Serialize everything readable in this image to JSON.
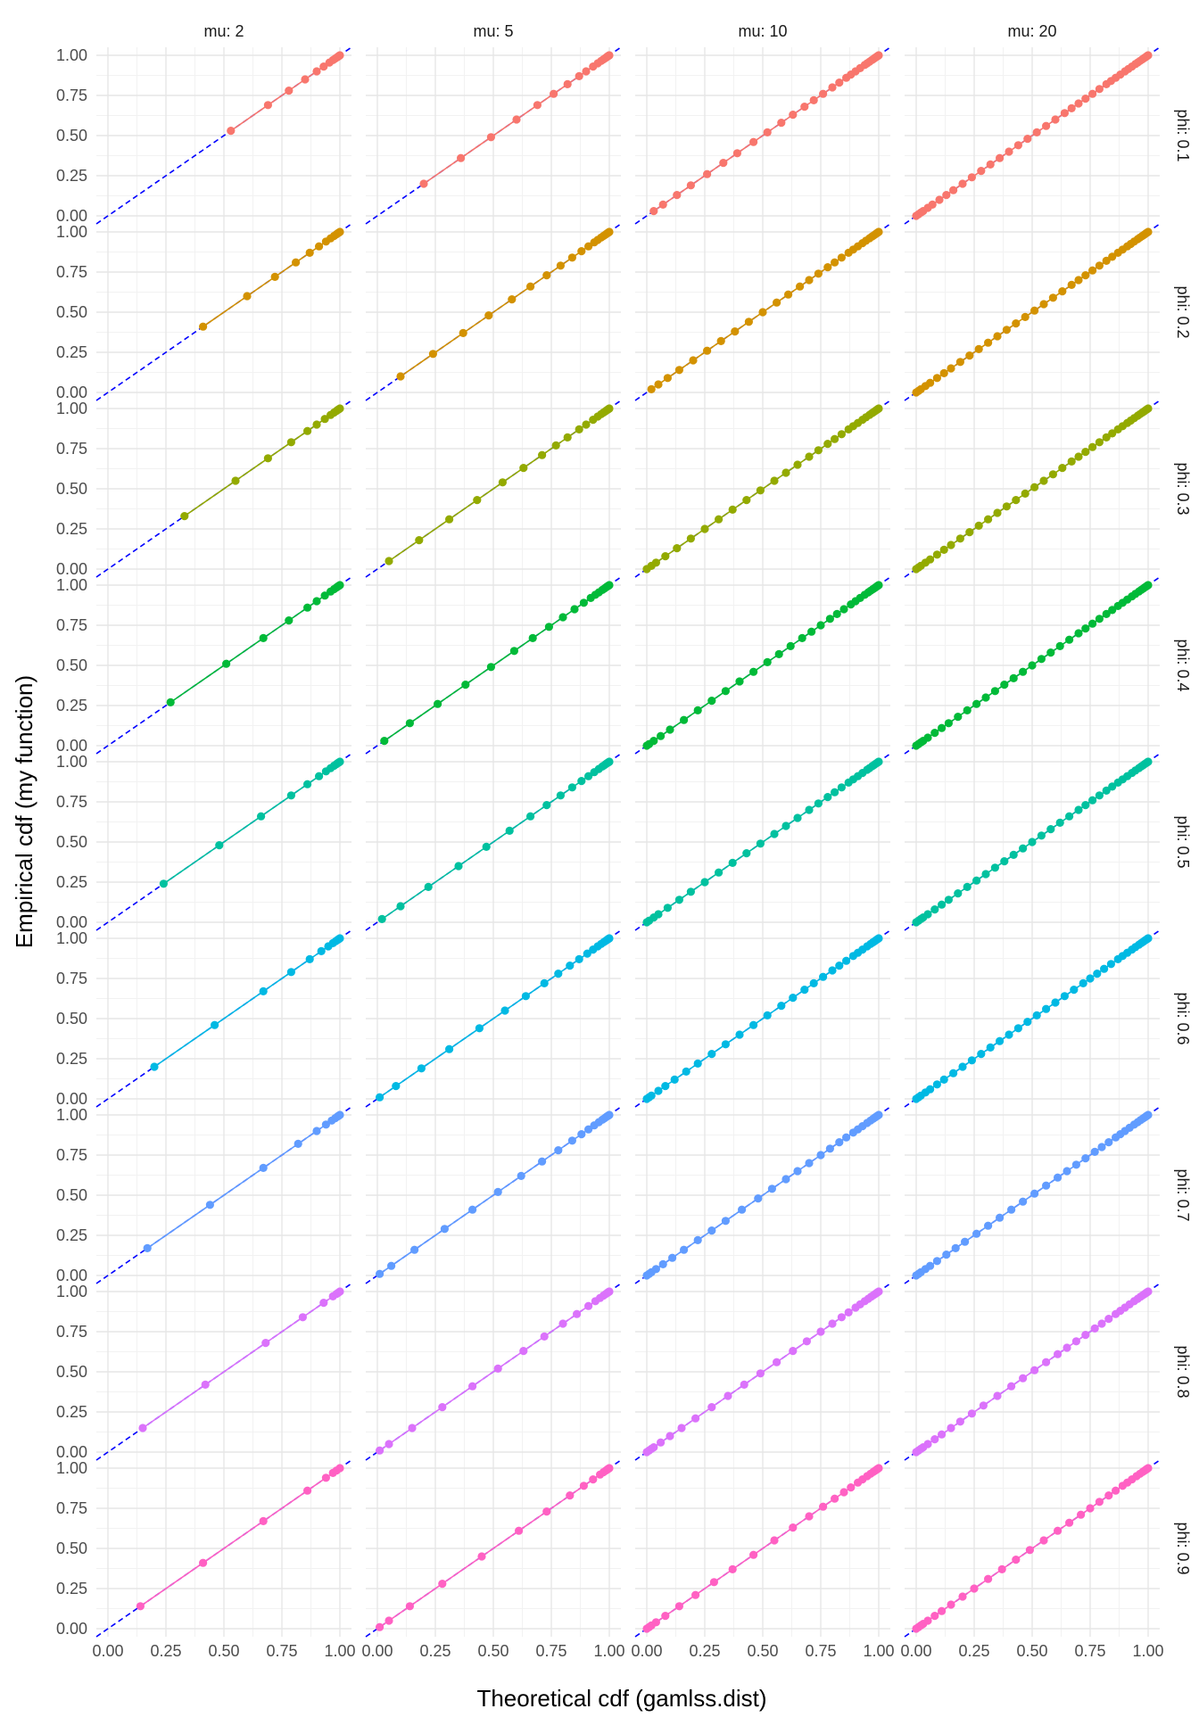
{
  "chart_data": {
    "type": "scatter",
    "xlabel": "Theoretical cdf (gamlss.dist)",
    "ylabel": "Empirical cdf (my function)",
    "xlim": [
      -0.05,
      1.05
    ],
    "ylim": [
      -0.05,
      1.05
    ],
    "x_ticks": [
      "0.00",
      "0.25",
      "0.50",
      "0.75",
      "1.00"
    ],
    "y_ticks": [
      "0.00",
      "0.25",
      "0.50",
      "0.75",
      "1.00"
    ],
    "grid": true,
    "reference_line": {
      "slope": 1,
      "intercept": 0,
      "style": "dashed",
      "color": "#0000ff"
    },
    "facet_cols": [
      "mu: 2",
      "mu: 5",
      "mu: 10",
      "mu: 20"
    ],
    "facet_rows": [
      "phi: 0.1",
      "phi: 0.2",
      "phi: 0.3",
      "phi: 0.4",
      "phi: 0.5",
      "phi: 0.6",
      "phi: 0.7",
      "phi: 0.8",
      "phi: 0.9"
    ],
    "row_colors": [
      "#F8766D",
      "#D39200",
      "#93AA00",
      "#00BA38",
      "#00C19F",
      "#00B9E3",
      "#619CFF",
      "#DB72FB",
      "#FF61C3"
    ],
    "mu_values": [
      2,
      5,
      10,
      20
    ],
    "phi_values": [
      0.1,
      0.2,
      0.3,
      0.4,
      0.5,
      0.6,
      0.7,
      0.8,
      0.9
    ],
    "panel_points": [
      [
        [
          0.53,
          0.69,
          0.78,
          0.85,
          0.9,
          0.93,
          0.955,
          0.97,
          0.98,
          0.988,
          0.993,
          0.996,
          0.998,
          1.0
        ],
        [
          0.2,
          0.36,
          0.49,
          0.6,
          0.69,
          0.76,
          0.82,
          0.87,
          0.9,
          0.93,
          0.95,
          0.965,
          0.975,
          0.983,
          0.988,
          0.992,
          0.995,
          0.997,
          0.998,
          0.999,
          1.0
        ],
        [
          0.03,
          0.07,
          0.13,
          0.19,
          0.26,
          0.33,
          0.39,
          0.46,
          0.52,
          0.58,
          0.63,
          0.68,
          0.72,
          0.76,
          0.8,
          0.83,
          0.86,
          0.88,
          0.9,
          0.92,
          0.94,
          0.95,
          0.96,
          0.97,
          0.978,
          0.984,
          0.989,
          0.993,
          0.996,
          0.998,
          1.0
        ],
        [
          0.0,
          0.01,
          0.02,
          0.03,
          0.05,
          0.07,
          0.1,
          0.13,
          0.16,
          0.2,
          0.24,
          0.28,
          0.32,
          0.36,
          0.4,
          0.44,
          0.48,
          0.52,
          0.56,
          0.6,
          0.64,
          0.67,
          0.7,
          0.73,
          0.76,
          0.79,
          0.82,
          0.84,
          0.86,
          0.88,
          0.9,
          0.915,
          0.93,
          0.945,
          0.955,
          0.965,
          0.975,
          0.982,
          0.988,
          0.993,
          0.997,
          1.0
        ]
      ],
      [
        [
          0.41,
          0.6,
          0.72,
          0.81,
          0.87,
          0.91,
          0.94,
          0.96,
          0.975,
          0.985,
          0.992,
          0.996,
          1.0
        ],
        [
          0.1,
          0.24,
          0.37,
          0.48,
          0.58,
          0.66,
          0.73,
          0.79,
          0.84,
          0.88,
          0.91,
          0.935,
          0.95,
          0.965,
          0.975,
          0.983,
          0.989,
          0.993,
          0.996,
          0.998,
          1.0
        ],
        [
          0.02,
          0.05,
          0.09,
          0.14,
          0.2,
          0.26,
          0.32,
          0.38,
          0.44,
          0.5,
          0.56,
          0.61,
          0.66,
          0.7,
          0.74,
          0.78,
          0.81,
          0.84,
          0.87,
          0.89,
          0.91,
          0.93,
          0.945,
          0.96,
          0.97,
          0.978,
          0.985,
          0.99,
          0.994,
          0.997,
          1.0
        ],
        [
          0.0,
          0.01,
          0.02,
          0.04,
          0.06,
          0.09,
          0.12,
          0.15,
          0.19,
          0.23,
          0.27,
          0.31,
          0.35,
          0.39,
          0.43,
          0.47,
          0.51,
          0.55,
          0.59,
          0.63,
          0.67,
          0.7,
          0.73,
          0.76,
          0.79,
          0.82,
          0.845,
          0.87,
          0.89,
          0.91,
          0.925,
          0.94,
          0.955,
          0.965,
          0.975,
          0.983,
          0.99,
          0.995,
          1.0
        ]
      ],
      [
        [
          0.33,
          0.55,
          0.69,
          0.79,
          0.86,
          0.9,
          0.935,
          0.96,
          0.975,
          0.985,
          0.992,
          0.996,
          1.0
        ],
        [
          0.05,
          0.18,
          0.31,
          0.43,
          0.54,
          0.63,
          0.71,
          0.77,
          0.82,
          0.87,
          0.9,
          0.93,
          0.95,
          0.965,
          0.975,
          0.983,
          0.989,
          0.993,
          0.996,
          0.998,
          1.0
        ],
        [
          0.0,
          0.02,
          0.04,
          0.08,
          0.13,
          0.19,
          0.25,
          0.31,
          0.37,
          0.43,
          0.49,
          0.55,
          0.6,
          0.65,
          0.7,
          0.74,
          0.78,
          0.81,
          0.84,
          0.87,
          0.89,
          0.91,
          0.93,
          0.945,
          0.96,
          0.97,
          0.978,
          0.985,
          0.99,
          0.994,
          0.997,
          1.0
        ],
        [
          0.0,
          0.01,
          0.02,
          0.04,
          0.06,
          0.09,
          0.12,
          0.15,
          0.19,
          0.23,
          0.27,
          0.31,
          0.35,
          0.39,
          0.43,
          0.47,
          0.51,
          0.55,
          0.59,
          0.63,
          0.67,
          0.7,
          0.73,
          0.76,
          0.79,
          0.82,
          0.845,
          0.87,
          0.89,
          0.91,
          0.925,
          0.94,
          0.955,
          0.965,
          0.975,
          0.983,
          0.99,
          0.995,
          1.0
        ]
      ],
      [
        [
          0.27,
          0.51,
          0.67,
          0.78,
          0.86,
          0.9,
          0.935,
          0.96,
          0.975,
          0.985,
          0.992,
          0.996,
          1.0
        ],
        [
          0.03,
          0.14,
          0.26,
          0.38,
          0.49,
          0.59,
          0.67,
          0.74,
          0.8,
          0.85,
          0.89,
          0.92,
          0.94,
          0.955,
          0.97,
          0.98,
          0.987,
          0.992,
          0.996,
          0.998,
          1.0
        ],
        [
          0.0,
          0.01,
          0.03,
          0.06,
          0.1,
          0.16,
          0.22,
          0.28,
          0.34,
          0.4,
          0.46,
          0.52,
          0.57,
          0.62,
          0.67,
          0.71,
          0.75,
          0.79,
          0.82,
          0.85,
          0.88,
          0.9,
          0.92,
          0.94,
          0.955,
          0.965,
          0.975,
          0.983,
          0.989,
          0.994,
          0.997,
          1.0
        ],
        [
          0.0,
          0.01,
          0.02,
          0.03,
          0.05,
          0.08,
          0.11,
          0.14,
          0.18,
          0.22,
          0.26,
          0.3,
          0.34,
          0.38,
          0.42,
          0.46,
          0.5,
          0.54,
          0.58,
          0.62,
          0.66,
          0.7,
          0.73,
          0.76,
          0.79,
          0.82,
          0.845,
          0.87,
          0.89,
          0.91,
          0.93,
          0.945,
          0.96,
          0.97,
          0.98,
          0.987,
          0.993,
          0.997,
          1.0
        ]
      ],
      [
        [
          0.24,
          0.48,
          0.66,
          0.79,
          0.86,
          0.91,
          0.94,
          0.96,
          0.975,
          0.985,
          0.992,
          0.996,
          1.0
        ],
        [
          0.02,
          0.1,
          0.22,
          0.35,
          0.47,
          0.57,
          0.66,
          0.73,
          0.79,
          0.84,
          0.88,
          0.91,
          0.935,
          0.955,
          0.97,
          0.98,
          0.987,
          0.992,
          0.996,
          0.998,
          1.0
        ],
        [
          0.0,
          0.01,
          0.03,
          0.05,
          0.09,
          0.14,
          0.19,
          0.25,
          0.31,
          0.37,
          0.43,
          0.49,
          0.55,
          0.6,
          0.65,
          0.7,
          0.74,
          0.78,
          0.81,
          0.84,
          0.87,
          0.89,
          0.91,
          0.93,
          0.95,
          0.96,
          0.972,
          0.98,
          0.987,
          0.993,
          0.997,
          1.0
        ],
        [
          0.0,
          0.01,
          0.02,
          0.03,
          0.05,
          0.08,
          0.11,
          0.14,
          0.18,
          0.22,
          0.26,
          0.3,
          0.34,
          0.38,
          0.42,
          0.46,
          0.5,
          0.54,
          0.58,
          0.62,
          0.66,
          0.7,
          0.73,
          0.76,
          0.79,
          0.82,
          0.845,
          0.87,
          0.89,
          0.91,
          0.93,
          0.945,
          0.96,
          0.97,
          0.98,
          0.987,
          0.993,
          0.997,
          1.0
        ]
      ],
      [
        [
          0.2,
          0.46,
          0.67,
          0.79,
          0.87,
          0.92,
          0.95,
          0.97,
          0.982,
          0.99,
          0.995,
          1.0
        ],
        [
          0.01,
          0.08,
          0.19,
          0.31,
          0.44,
          0.55,
          0.64,
          0.72,
          0.78,
          0.83,
          0.87,
          0.905,
          0.93,
          0.95,
          0.965,
          0.977,
          0.985,
          0.991,
          0.995,
          0.998,
          1.0
        ],
        [
          0.0,
          0.01,
          0.02,
          0.05,
          0.08,
          0.12,
          0.17,
          0.22,
          0.28,
          0.34,
          0.4,
          0.46,
          0.52,
          0.58,
          0.63,
          0.68,
          0.72,
          0.76,
          0.8,
          0.83,
          0.86,
          0.89,
          0.91,
          0.93,
          0.95,
          0.965,
          0.975,
          0.983,
          0.99,
          0.995,
          1.0
        ],
        [
          0.0,
          0.01,
          0.02,
          0.04,
          0.06,
          0.09,
          0.12,
          0.16,
          0.2,
          0.24,
          0.28,
          0.32,
          0.36,
          0.4,
          0.44,
          0.48,
          0.52,
          0.56,
          0.6,
          0.64,
          0.68,
          0.72,
          0.75,
          0.78,
          0.81,
          0.84,
          0.87,
          0.89,
          0.91,
          0.93,
          0.945,
          0.96,
          0.97,
          0.98,
          0.987,
          0.993,
          0.997,
          1.0
        ]
      ],
      [
        [
          0.17,
          0.44,
          0.67,
          0.82,
          0.9,
          0.94,
          0.965,
          0.98,
          0.99,
          0.995,
          1.0
        ],
        [
          0.01,
          0.06,
          0.16,
          0.29,
          0.41,
          0.52,
          0.62,
          0.71,
          0.78,
          0.84,
          0.88,
          0.91,
          0.935,
          0.955,
          0.97,
          0.98,
          0.987,
          0.992,
          0.996,
          0.998,
          1.0
        ],
        [
          0.0,
          0.01,
          0.02,
          0.04,
          0.07,
          0.11,
          0.16,
          0.22,
          0.28,
          0.34,
          0.41,
          0.48,
          0.54,
          0.6,
          0.65,
          0.7,
          0.75,
          0.79,
          0.83,
          0.86,
          0.89,
          0.91,
          0.93,
          0.95,
          0.965,
          0.976,
          0.984,
          0.99,
          0.995,
          1.0
        ],
        [
          0.0,
          0.01,
          0.02,
          0.04,
          0.06,
          0.09,
          0.13,
          0.17,
          0.21,
          0.26,
          0.31,
          0.36,
          0.41,
          0.46,
          0.51,
          0.56,
          0.61,
          0.65,
          0.69,
          0.73,
          0.77,
          0.8,
          0.83,
          0.86,
          0.88,
          0.9,
          0.92,
          0.94,
          0.955,
          0.967,
          0.977,
          0.985,
          0.991,
          0.995,
          1.0
        ]
      ],
      [
        [
          0.15,
          0.42,
          0.68,
          0.84,
          0.93,
          0.97,
          0.985,
          0.993,
          1.0
        ],
        [
          0.01,
          0.05,
          0.15,
          0.28,
          0.41,
          0.52,
          0.63,
          0.72,
          0.8,
          0.86,
          0.91,
          0.94,
          0.96,
          0.975,
          0.985,
          0.991,
          0.995,
          0.998,
          1.0
        ],
        [
          0.0,
          0.01,
          0.02,
          0.03,
          0.06,
          0.1,
          0.15,
          0.21,
          0.28,
          0.35,
          0.42,
          0.49,
          0.56,
          0.63,
          0.69,
          0.75,
          0.8,
          0.84,
          0.87,
          0.9,
          0.92,
          0.94,
          0.955,
          0.967,
          0.977,
          0.985,
          0.991,
          0.995,
          1.0
        ],
        [
          0.0,
          0.01,
          0.02,
          0.03,
          0.05,
          0.08,
          0.11,
          0.15,
          0.19,
          0.24,
          0.29,
          0.35,
          0.41,
          0.46,
          0.51,
          0.56,
          0.61,
          0.65,
          0.69,
          0.73,
          0.77,
          0.8,
          0.83,
          0.86,
          0.88,
          0.9,
          0.92,
          0.94,
          0.955,
          0.967,
          0.977,
          0.985,
          0.991,
          0.995,
          1.0
        ]
      ],
      [
        [
          0.14,
          0.41,
          0.67,
          0.86,
          0.94,
          0.97,
          0.985,
          1.0
        ],
        [
          0.01,
          0.05,
          0.14,
          0.28,
          0.45,
          0.61,
          0.73,
          0.83,
          0.89,
          0.93,
          0.96,
          0.975,
          0.985,
          0.991,
          0.995,
          0.998,
          1.0
        ],
        [
          0.0,
          0.01,
          0.02,
          0.04,
          0.08,
          0.14,
          0.21,
          0.29,
          0.37,
          0.46,
          0.55,
          0.63,
          0.7,
          0.76,
          0.81,
          0.85,
          0.88,
          0.91,
          0.93,
          0.95,
          0.965,
          0.977,
          0.985,
          0.991,
          0.995,
          1.0
        ],
        [
          0.0,
          0.01,
          0.02,
          0.03,
          0.05,
          0.08,
          0.11,
          0.15,
          0.2,
          0.25,
          0.31,
          0.37,
          0.43,
          0.49,
          0.55,
          0.61,
          0.66,
          0.71,
          0.75,
          0.79,
          0.83,
          0.86,
          0.89,
          0.91,
          0.93,
          0.95,
          0.965,
          0.977,
          0.985,
          0.991,
          0.995,
          1.0
        ]
      ]
    ]
  }
}
